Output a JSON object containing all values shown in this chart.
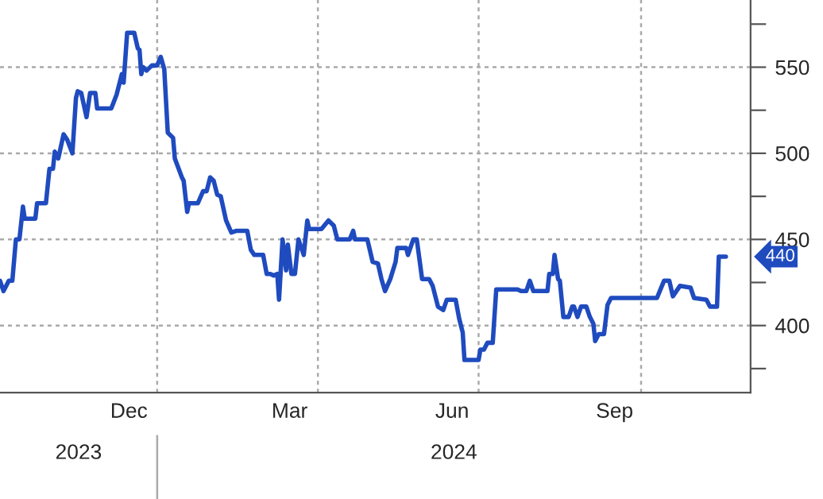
{
  "chart_data": {
    "type": "line",
    "x": [
      "2023-10-04",
      "2023-10-06",
      "2023-10-09",
      "2023-10-11",
      "2023-10-13",
      "2023-10-15",
      "2023-10-17",
      "2023-10-18",
      "2023-10-24",
      "2023-10-25",
      "2023-10-30",
      "2023-11-01",
      "2023-11-03",
      "2023-11-04",
      "2023-11-06",
      "2023-11-09",
      "2023-11-11",
      "2023-11-14",
      "2023-11-16",
      "2023-11-17",
      "2023-11-19",
      "2023-11-22",
      "2023-11-24",
      "2023-11-27",
      "2023-11-28",
      "2023-12-06",
      "2023-12-09",
      "2023-12-12",
      "2023-12-13",
      "2023-12-15",
      "2023-12-19",
      "2023-12-21",
      "2023-12-22",
      "2023-12-23",
      "2023-12-24",
      "2023-12-26",
      "2023-12-29",
      "2024-01-01",
      "2024-01-03",
      "2024-01-05",
      "2024-01-07",
      "2024-01-10",
      "2024-01-11",
      "2024-01-15",
      "2024-01-16",
      "2024-01-18",
      "2024-01-19",
      "2024-01-24",
      "2024-01-27",
      "2024-01-29",
      "2024-01-31",
      "2024-02-02",
      "2024-02-04",
      "2024-02-06",
      "2024-02-09",
      "2024-02-12",
      "2024-02-15",
      "2024-02-21",
      "2024-02-23",
      "2024-02-25",
      "2024-03-01",
      "2024-03-03",
      "2024-03-05",
      "2024-03-07",
      "2024-03-09",
      "2024-03-10",
      "2024-03-12",
      "2024-03-14",
      "2024-03-15",
      "2024-03-17",
      "2024-03-19",
      "2024-03-21",
      "2024-03-24",
      "2024-03-26",
      "2024-03-27",
      "2024-04-03",
      "2024-04-07",
      "2024-04-10",
      "2024-04-12",
      "2024-04-19",
      "2024-04-21",
      "2024-04-22",
      "2024-04-29",
      "2024-05-02",
      "2024-05-05",
      "2024-05-07",
      "2024-05-09",
      "2024-05-12",
      "2024-05-15",
      "2024-05-16",
      "2024-05-21",
      "2024-05-22",
      "2024-05-25",
      "2024-05-27",
      "2024-05-30",
      "2024-06-03",
      "2024-06-05",
      "2024-06-08",
      "2024-06-11",
      "2024-06-13",
      "2024-06-18",
      "2024-06-20",
      "2024-06-22",
      "2024-06-23",
      "2024-07-01",
      "2024-07-02",
      "2024-07-04",
      "2024-07-06",
      "2024-07-09",
      "2024-07-11",
      "2024-07-23",
      "2024-07-25",
      "2024-07-28",
      "2024-07-30",
      "2024-08-01",
      "2024-08-09",
      "2024-08-10",
      "2024-08-12",
      "2024-08-13",
      "2024-08-15",
      "2024-08-16",
      "2024-08-18",
      "2024-08-21",
      "2024-08-23",
      "2024-08-24",
      "2024-08-26",
      "2024-08-28",
      "2024-08-31",
      "2024-09-02",
      "2024-09-04",
      "2024-09-05",
      "2024-09-07",
      "2024-09-10",
      "2024-09-12",
      "2024-09-14",
      "2024-10-10",
      "2024-10-14",
      "2024-10-17",
      "2024-10-19",
      "2024-10-23",
      "2024-10-29",
      "2024-10-31",
      "2024-11-07",
      "2024-11-09",
      "2024-11-13",
      "2024-11-14",
      "2024-11-18"
    ],
    "series": [
      {
        "color": "#1f4bbf",
        "values": [
          426,
          420,
          426,
          426,
          450,
          450,
          469,
          462,
          462,
          471,
          471,
          491,
          491,
          501,
          497,
          511,
          508,
          500,
          532,
          536,
          535,
          521,
          535,
          535,
          526,
          526,
          534,
          546,
          541,
          570,
          570,
          561,
          560,
          546,
          550,
          548,
          551,
          551,
          556,
          549,
          512,
          509,
          497,
          486,
          484,
          466,
          471,
          471,
          478,
          478,
          486,
          484,
          476,
          475,
          461,
          454,
          455,
          455,
          444,
          441,
          441,
          430,
          430,
          429,
          430,
          415,
          450,
          432,
          447,
          430,
          430,
          450,
          441,
          461,
          456,
          456,
          461,
          458,
          450,
          450,
          455,
          450,
          450,
          437,
          436,
          427,
          420,
          427,
          437,
          445,
          445,
          441,
          450,
          450,
          427,
          427,
          423,
          411,
          409,
          415,
          415,
          404,
          396,
          380,
          380,
          386,
          386,
          390,
          390,
          421,
          421,
          420,
          420,
          426,
          420,
          420,
          430,
          430,
          441,
          427,
          426,
          405,
          405,
          411,
          411,
          405,
          411,
          411,
          405,
          401,
          391,
          395,
          395,
          412,
          416,
          416,
          426,
          426,
          417,
          423,
          422,
          416,
          415,
          411,
          411,
          440,
          440
        ]
      }
    ],
    "xlim": [
      "2023-10-04",
      "2024-12-02"
    ],
    "xticks": [
      {
        "value": "2023-12-16",
        "label": "Dec"
      },
      {
        "value": "2024-01-01",
        "label": null
      },
      {
        "value": "2024-03-16",
        "label": "Mar"
      },
      {
        "value": "2024-04-01",
        "label": null
      },
      {
        "value": "2024-06-16",
        "label": "Jun"
      },
      {
        "value": "2024-07-01",
        "label": null
      },
      {
        "value": "2024-09-16",
        "label": "Sep"
      },
      {
        "value": "2024-10-01",
        "label": null
      }
    ],
    "ylim": [
      361,
      589
    ],
    "yticks": [
      {
        "value": 375,
        "label": null
      },
      400,
      {
        "value": 425,
        "label": null
      },
      450,
      {
        "value": 475,
        "label": null
      },
      500,
      {
        "value": 525,
        "label": null
      },
      550,
      {
        "value": 575,
        "label": null
      }
    ],
    "grid": true,
    "annotations": [
      "2023",
      "2024",
      {
        "text": "440",
        "x": "2024-11-18",
        "y": 440
      }
    ]
  }
}
